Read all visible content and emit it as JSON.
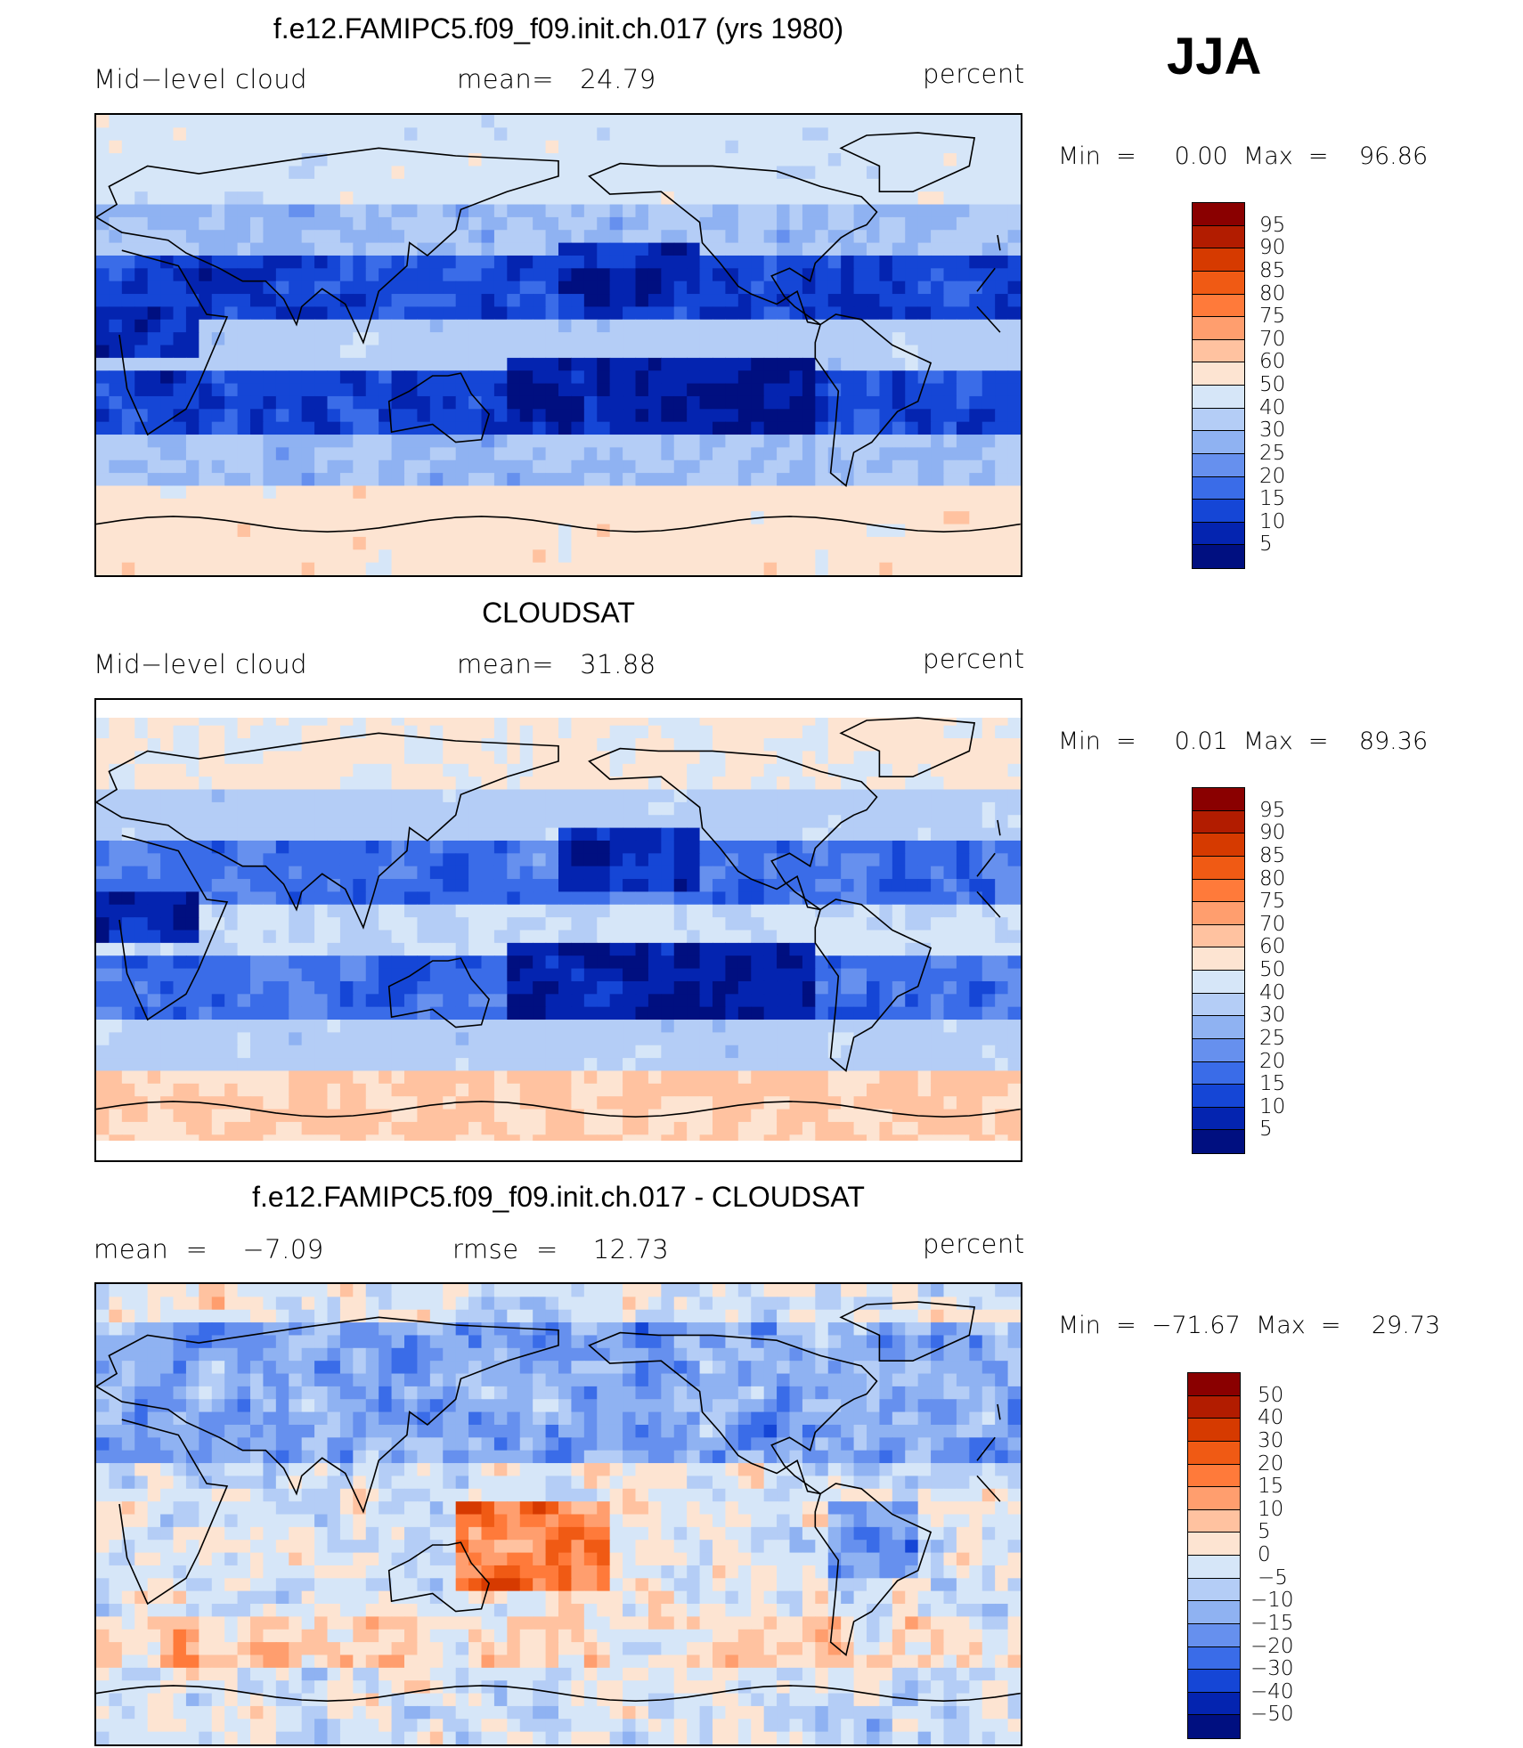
{
  "season": "JJA",
  "panels": [
    {
      "id": "model",
      "title": "f.e12.FAMIPC5.f09_f09.init.ch.017 (yrs 1980)",
      "left_label": "Mid−level cloud",
      "center_label": "mean=   24.79",
      "units": "percent",
      "min_max": "Min  =     0.00  Max  =    96.86",
      "colorbar_labels": [
        "95",
        "90",
        "85",
        "80",
        "75",
        "70",
        "60",
        "50",
        "40",
        "30",
        "25",
        "20",
        "15",
        "10",
        "5"
      ],
      "colorbar_colors": [
        "#8a0000",
        "#b21c00",
        "#d63a00",
        "#f05a14",
        "#ff7a3a",
        "#ff9e6e",
        "#ffc2a0",
        "#fde4d2",
        "#d6e6f8",
        "#b4cdf6",
        "#8fb2f2",
        "#6690ee",
        "#3a6ce8",
        "#1546d6",
        "#0424b0",
        "#000f80"
      ],
      "style": "model"
    },
    {
      "id": "obs",
      "title": "CLOUDSAT",
      "left_label": "Mid−level cloud",
      "center_label": "mean=   31.88",
      "units": "percent",
      "min_max": "Min  =     0.01  Max  =    89.36",
      "colorbar_labels": [
        "95",
        "90",
        "85",
        "80",
        "75",
        "70",
        "60",
        "50",
        "40",
        "30",
        "25",
        "20",
        "15",
        "10",
        "5"
      ],
      "colorbar_colors": [
        "#8a0000",
        "#b21c00",
        "#d63a00",
        "#f05a14",
        "#ff7a3a",
        "#ff9e6e",
        "#ffc2a0",
        "#fde4d2",
        "#d6e6f8",
        "#b4cdf6",
        "#8fb2f2",
        "#6690ee",
        "#3a6ce8",
        "#1546d6",
        "#0424b0",
        "#000f80"
      ],
      "style": "obs"
    },
    {
      "id": "diff",
      "title": "f.e12.FAMIPC5.f09_f09.init.ch.017 - CLOUDSAT",
      "left_label": "mean  =    −7.09",
      "center_label": "rmse  =    12.73",
      "units": "percent",
      "min_max": "Min  =  −71.67  Max  =    29.73",
      "colorbar_labels": [
        "50",
        "40",
        "30",
        "20",
        "15",
        "10",
        "5",
        "0",
        "−5",
        "−10",
        "−15",
        "−20",
        "−30",
        "−40",
        "−50"
      ],
      "colorbar_colors": [
        "#8a0000",
        "#b21c00",
        "#d63a00",
        "#f05a14",
        "#ff7a3a",
        "#ff9e6e",
        "#ffc2a0",
        "#fde4d2",
        "#d6e6f8",
        "#b4cdf6",
        "#8fb2f2",
        "#6690ee",
        "#3a6ce8",
        "#1546d6",
        "#0424b0",
        "#000f80"
      ],
      "style": "diff"
    }
  ]
}
